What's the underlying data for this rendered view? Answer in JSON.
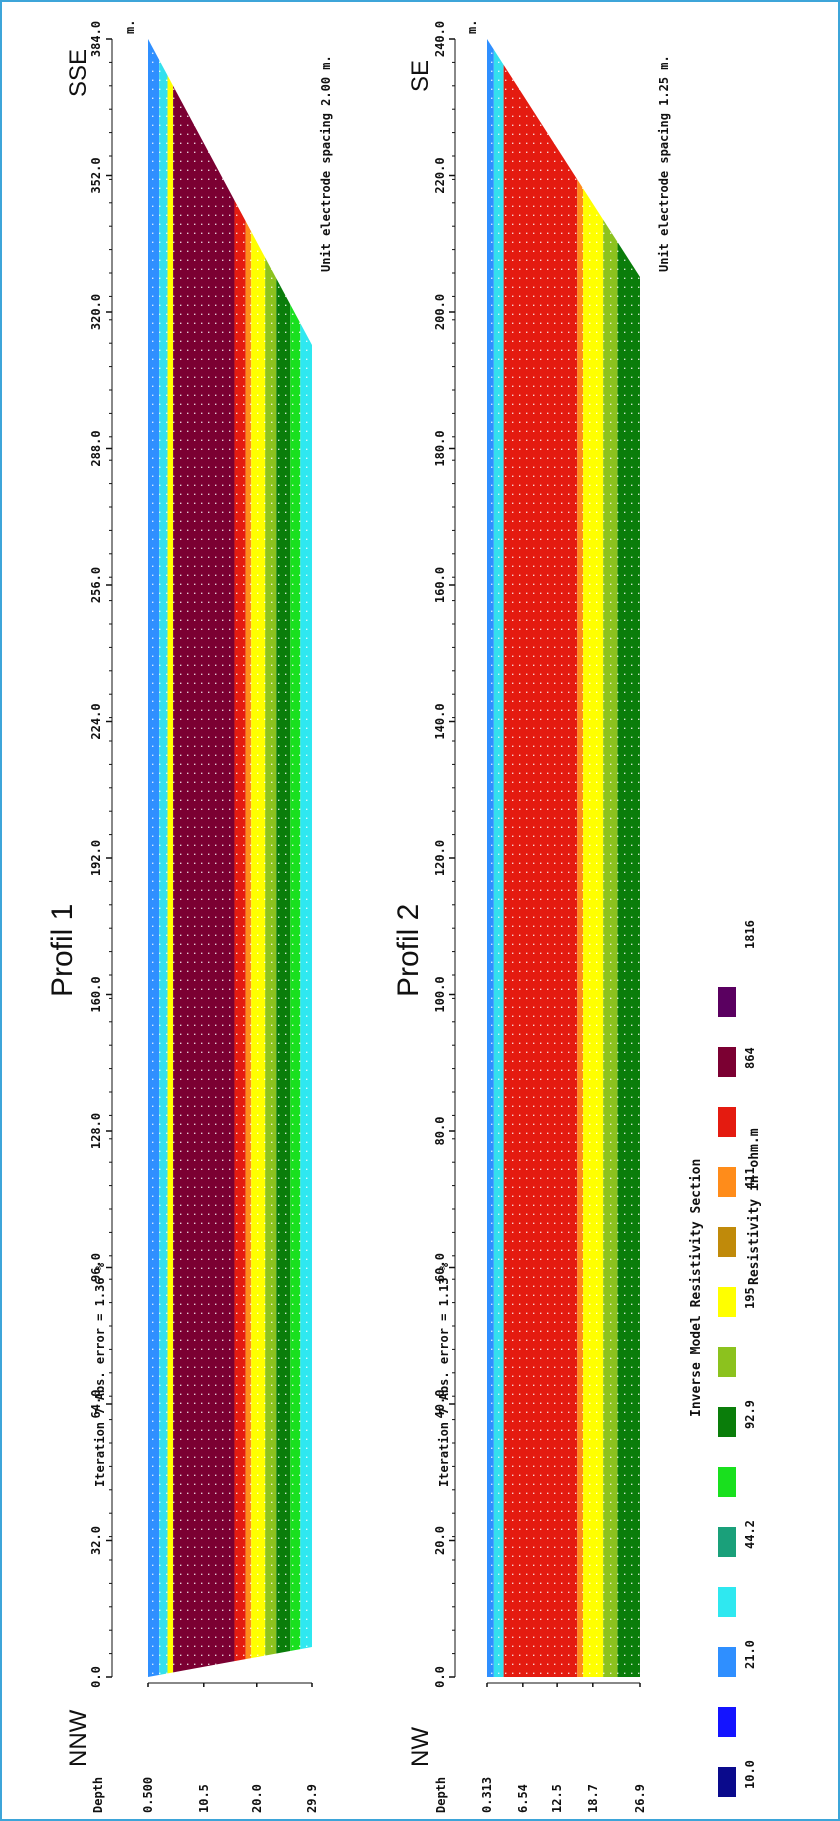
{
  "profiles": [
    {
      "title": "Profil 1",
      "left_dir": "NNW",
      "right_dir": "SSE",
      "iteration": "Iteration 7 Abs. error = 1.36 %",
      "spacing": "Unit electrode spacing 2.00 m.",
      "unit": "m.",
      "depth_label": "Depth",
      "x_ticks": [
        "0.0",
        "32.0",
        "64.0",
        "96.0",
        "128.0",
        "160.0",
        "192.0",
        "224.0",
        "256.0",
        "288.0",
        "320.0",
        "352.0",
        "384.0"
      ],
      "x_values": [
        0,
        32,
        64,
        96,
        128,
        160,
        192,
        224,
        256,
        288,
        320,
        352,
        384
      ],
      "depth_ticks": [
        "0.500",
        "10.5",
        "20.0",
        "29.9"
      ],
      "depth_values": [
        0.5,
        10.5,
        20.0,
        29.9
      ],
      "x_range": [
        0,
        384
      ],
      "depth_range": [
        0.5,
        29.9
      ],
      "layers": [
        {
          "depth": 0.5,
          "color": "#2f8fff"
        },
        {
          "depth": 2.5,
          "color": "#34e0ee"
        },
        {
          "depth": 4.0,
          "color": "#ffff00"
        },
        {
          "depth": 5.0,
          "color": "#7b0032"
        },
        {
          "depth": 16.0,
          "color": "#e41b10"
        },
        {
          "depth": 18.0,
          "color": "#ff8c1a"
        },
        {
          "depth": 19.0,
          "color": "#ffff00"
        },
        {
          "depth": 21.5,
          "color": "#8cc21e"
        },
        {
          "depth": 23.5,
          "color": "#0a7d0a"
        },
        {
          "depth": 26.0,
          "color": "#19e01e"
        },
        {
          "depth": 27.8,
          "color": "#2fe8f0"
        }
      ]
    },
    {
      "title": "Profil 2",
      "left_dir": "NW",
      "right_dir": "SE",
      "iteration": "Iteration 7 Abs. error = 1.13 %",
      "spacing": "Unit electrode spacing 1.25 m.",
      "unit": "m.",
      "depth_label": "Depth",
      "x_ticks": [
        "0.0",
        "20.0",
        "40.0",
        "60.0",
        "80.0",
        "100.0",
        "120.0",
        "140.0",
        "160.0",
        "180.0",
        "200.0",
        "220.0",
        "240.0"
      ],
      "x_values": [
        0,
        20,
        40,
        60,
        80,
        100,
        120,
        140,
        160,
        180,
        200,
        220,
        240
      ],
      "depth_ticks": [
        "0.313",
        "6.54",
        "12.5",
        "18.7",
        "26.9"
      ],
      "depth_values": [
        0.313,
        6.54,
        12.5,
        18.7,
        26.9
      ],
      "x_range": [
        0,
        240
      ],
      "depth_range": [
        0.313,
        26.9
      ],
      "layers": [
        {
          "depth": 0.313,
          "color": "#2f8fff"
        },
        {
          "depth": 1.5,
          "color": "#34e0ee"
        },
        {
          "depth": 3.2,
          "color": "#e41b10"
        },
        {
          "depth": 16.0,
          "color": "#ff8c1a"
        },
        {
          "depth": 17.0,
          "color": "#ffff00"
        },
        {
          "depth": 20.5,
          "color": "#8cc21e"
        },
        {
          "depth": 23.0,
          "color": "#0a7d0a"
        },
        {
          "depth": 27.5,
          "color": "#19e01e"
        }
      ]
    }
  ],
  "legend": {
    "title": "Inverse Model Resistivity Section",
    "unit_label": "Resistivity in ohm.m",
    "values": [
      "10.0",
      "21.0",
      "44.2",
      "92.9",
      "195",
      "411",
      "864",
      "1816"
    ],
    "colors": [
      "#0a0a8c",
      "#1414ff",
      "#2f8fff",
      "#2fe8f0",
      "#1aa07a",
      "#19e01e",
      "#0a7d0a",
      "#8cc21e",
      "#ffff00",
      "#c08a0a",
      "#ff8c1a",
      "#e41b10",
      "#7b0032",
      "#5a0060"
    ]
  },
  "chart_data": [
    {
      "type": "heatmap",
      "title": "Profil 1",
      "xlabel": "",
      "ylabel": "Depth",
      "x_ticks": [
        0,
        32,
        64,
        96,
        128,
        160,
        192,
        224,
        256,
        288,
        320,
        352,
        384
      ],
      "depth_ticks": [
        0.5,
        10.5,
        20.0,
        29.9
      ],
      "unit": "m.",
      "annotations": [
        "NNW",
        "SSE",
        "Iteration 7 Abs. error = 1.36 %",
        "Unit electrode spacing 2.00 m."
      ]
    },
    {
      "type": "heatmap",
      "title": "Profil 2",
      "xlabel": "",
      "ylabel": "Depth",
      "x_ticks": [
        0,
        20,
        40,
        60,
        80,
        100,
        120,
        140,
        160,
        180,
        200,
        220,
        240
      ],
      "depth_ticks": [
        0.313,
        6.54,
        12.5,
        18.7,
        26.9
      ],
      "unit": "m.",
      "annotations": [
        "NW",
        "SE",
        "Iteration 7 Abs. error = 1.13 %",
        "Unit electrode spacing 1.25 m."
      ]
    }
  ]
}
